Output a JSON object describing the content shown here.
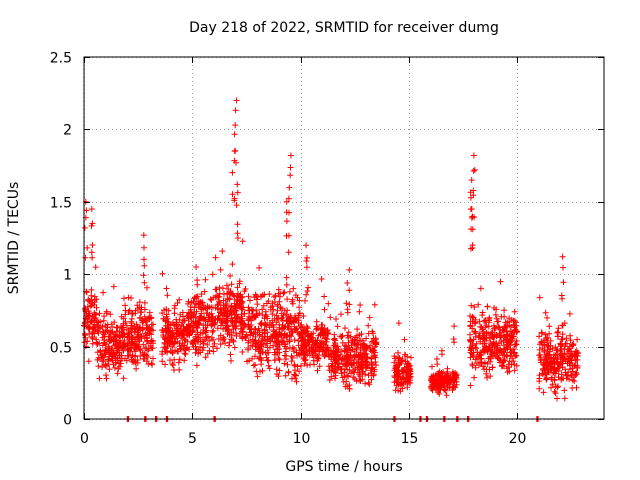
{
  "chart_data": {
    "type": "scatter",
    "title": "Day 218 of 2022, SRMTID for receiver dumg",
    "xlabel": "GPS time / hours",
    "ylabel": "SRMTID / TECUs",
    "xlim": [
      0,
      24
    ],
    "ylim": [
      0,
      2.5
    ],
    "xticks": [
      0,
      5,
      10,
      15,
      20
    ],
    "xtick_labels": [
      "0",
      "5",
      "10",
      "15",
      "20"
    ],
    "yticks": [
      0,
      0.5,
      1,
      1.5,
      2,
      2.5
    ],
    "ytick_labels": [
      "0",
      "0.5",
      "1",
      "1.5",
      "2",
      "2.5"
    ],
    "grid": true,
    "marker": "+",
    "color": "#ff0000",
    "series": [
      {
        "name": "SRMTID",
        "segments": [
          {
            "x_start": 0.0,
            "x_end": 0.6,
            "y_min": 0.35,
            "y_max": 1.0
          },
          {
            "x_start": 0.6,
            "x_end": 1.8,
            "y_min": 0.2,
            "y_max": 0.8
          },
          {
            "x_start": 1.8,
            "x_end": 3.2,
            "y_min": 0.25,
            "y_max": 0.9
          },
          {
            "x_start": 3.6,
            "x_end": 4.8,
            "y_min": 0.3,
            "y_max": 0.85
          },
          {
            "x_start": 4.8,
            "x_end": 6.0,
            "y_min": 0.35,
            "y_max": 0.95
          },
          {
            "x_start": 6.0,
            "x_end": 7.5,
            "y_min": 0.35,
            "y_max": 1.1
          },
          {
            "x_start": 7.5,
            "x_end": 9.0,
            "y_min": 0.2,
            "y_max": 1.0
          },
          {
            "x_start": 9.0,
            "x_end": 10.0,
            "y_min": 0.15,
            "y_max": 1.0
          },
          {
            "x_start": 10.0,
            "x_end": 11.3,
            "y_min": 0.3,
            "y_max": 0.75
          },
          {
            "x_start": 11.3,
            "x_end": 13.5,
            "y_min": 0.15,
            "y_max": 0.7
          },
          {
            "x_start": 14.3,
            "x_end": 15.1,
            "y_min": 0.15,
            "y_max": 0.5
          },
          {
            "x_start": 16.0,
            "x_end": 17.2,
            "y_min": 0.15,
            "y_max": 0.38
          },
          {
            "x_start": 17.8,
            "x_end": 20.0,
            "y_min": 0.2,
            "y_max": 0.85
          },
          {
            "x_start": 21.0,
            "x_end": 22.8,
            "y_min": 0.1,
            "y_max": 0.7
          }
        ],
        "peaks": [
          {
            "x": 0.1,
            "y": 1.5
          },
          {
            "x": 0.4,
            "y": 1.45
          },
          {
            "x": 2.8,
            "y": 1.27
          },
          {
            "x": 7.0,
            "y": 2.2
          },
          {
            "x": 6.9,
            "y": 1.85
          },
          {
            "x": 7.1,
            "y": 1.62
          },
          {
            "x": 9.5,
            "y": 1.82
          },
          {
            "x": 9.4,
            "y": 1.5
          },
          {
            "x": 18.0,
            "y": 1.82
          },
          {
            "x": 17.9,
            "y": 1.65
          },
          {
            "x": 17.9,
            "y": 1.45
          },
          {
            "x": 22.1,
            "y": 1.12
          },
          {
            "x": 10.3,
            "y": 1.2
          },
          {
            "x": 12.2,
            "y": 1.03
          },
          {
            "x": 5.2,
            "y": 1.05
          }
        ],
        "zeros": [
          2.0,
          2.8,
          3.3,
          3.8,
          6.0,
          14.3,
          15.5,
          15.8,
          16.6,
          17.2,
          17.7,
          20.9
        ]
      }
    ]
  }
}
